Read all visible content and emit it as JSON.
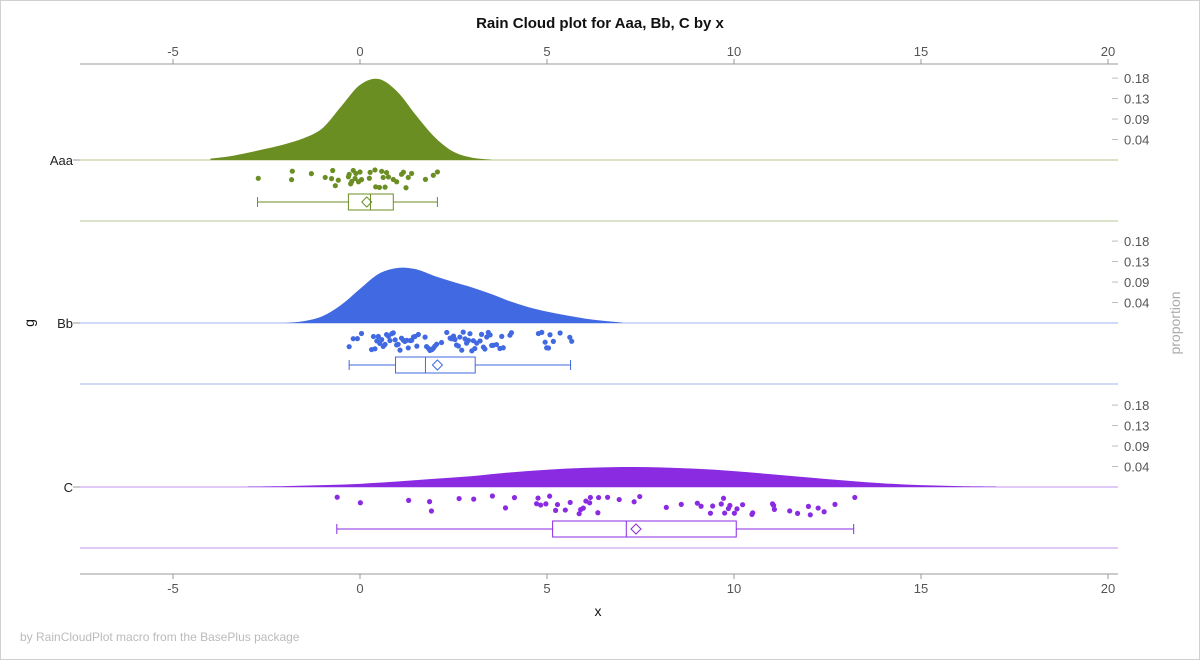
{
  "chart_data": {
    "type": "raincloud",
    "title": "Rain Cloud plot for Aaa, Bb, C by x",
    "xlabel": "x",
    "ylabel": "g",
    "y2label": "proportion",
    "xlim": [
      -7.5,
      20.3
    ],
    "xticks": [
      -5,
      0,
      5,
      10,
      15,
      20
    ],
    "density_ticks": [
      "0.04",
      "0.09",
      "0.13",
      "0.18"
    ],
    "density_tick_values": [
      0.045,
      0.09,
      0.135,
      0.18
    ],
    "footnote": "by RainCloudPlot macro from the BasePlus package",
    "grid": false,
    "groups": [
      {
        "name": "Aaa",
        "color": "#6B8E23",
        "density": {
          "x": [
            -4,
            -3.5,
            -3,
            -2.5,
            -2,
            -1.5,
            -1,
            -0.5,
            0,
            0.5,
            1,
            1.5,
            2,
            2.5,
            3,
            3.5
          ],
          "y": [
            0.003,
            0.008,
            0.016,
            0.025,
            0.035,
            0.048,
            0.07,
            0.118,
            0.165,
            0.178,
            0.15,
            0.098,
            0.05,
            0.018,
            0.005,
            0.001
          ]
        },
        "points": [
          -2.72,
          -1.83,
          -1.81,
          -1.3,
          -0.93,
          -0.76,
          -0.73,
          -0.66,
          -0.58,
          -0.31,
          -0.29,
          -0.25,
          -0.22,
          -0.18,
          -0.13,
          -0.11,
          -0.04,
          0.0,
          0.04,
          0.25,
          0.27,
          0.4,
          0.42,
          0.52,
          0.58,
          0.62,
          0.67,
          0.71,
          0.76,
          0.89,
          0.98,
          1.11,
          1.16,
          1.23,
          1.29,
          1.38,
          1.75,
          1.96,
          2.07
        ],
        "box": {
          "whisker_low": -2.74,
          "q1": -0.31,
          "median": 0.28,
          "mean": 0.18,
          "q3": 0.89,
          "whisker_high": 2.07
        }
      },
      {
        "name": "Bb",
        "color": "#4169E1",
        "density": {
          "x": [
            -2,
            -1.5,
            -1,
            -0.5,
            0,
            0.5,
            1,
            1.5,
            2,
            2.5,
            3,
            3.5,
            4,
            4.5,
            5,
            5.5,
            6,
            6.5,
            7
          ],
          "y": [
            0,
            0.004,
            0.015,
            0.04,
            0.075,
            0.108,
            0.121,
            0.118,
            0.103,
            0.09,
            0.078,
            0.064,
            0.048,
            0.035,
            0.025,
            0.017,
            0.01,
            0.005,
            0.001
          ]
        },
        "points": [
          -0.29,
          -0.18,
          -0.07,
          0.04,
          0.31,
          0.36,
          0.4,
          0.45,
          0.49,
          0.53,
          0.58,
          0.62,
          0.67,
          0.71,
          0.76,
          0.8,
          0.85,
          0.89,
          0.94,
          0.98,
          1.02,
          1.07,
          1.11,
          1.16,
          1.2,
          1.25,
          1.29,
          1.34,
          1.38,
          1.43,
          1.47,
          1.52,
          1.56,
          1.74,
          1.78,
          1.83,
          1.87,
          1.92,
          1.96,
          2.0,
          2.05,
          2.18,
          2.32,
          2.41,
          2.45,
          2.5,
          2.54,
          2.58,
          2.63,
          2.67,
          2.72,
          2.76,
          2.81,
          2.85,
          2.9,
          2.94,
          2.99,
          3.03,
          3.07,
          3.12,
          3.21,
          3.25,
          3.3,
          3.34,
          3.39,
          3.43,
          3.48,
          3.52,
          3.56,
          3.65,
          3.74,
          3.79,
          3.83,
          4.01,
          4.05,
          4.77,
          4.86,
          4.95,
          4.99,
          5.04,
          5.08,
          5.17,
          5.35,
          5.61,
          5.66
        ],
        "box": {
          "whisker_low": -0.29,
          "q1": 0.95,
          "median": 1.75,
          "mean": 2.07,
          "q3": 3.08,
          "whisker_high": 5.63
        }
      },
      {
        "name": "C",
        "color": "#8A2BE2",
        "density": {
          "x": [
            -3,
            -2,
            -1,
            0,
            1,
            2,
            3,
            4,
            5,
            6,
            7,
            8,
            9,
            10,
            11,
            12,
            13,
            14,
            15,
            16,
            17
          ],
          "y": [
            0.001,
            0.002,
            0.004,
            0.007,
            0.012,
            0.018,
            0.024,
            0.032,
            0.038,
            0.042,
            0.044,
            0.043,
            0.04,
            0.035,
            0.028,
            0.021,
            0.014,
            0.008,
            0.004,
            0.002,
            0.001
          ]
        },
        "points": [
          -0.61,
          0.01,
          1.3,
          1.86,
          1.91,
          2.65,
          3.04,
          3.54,
          3.89,
          4.13,
          4.72,
          4.76,
          4.83,
          4.97,
          5.07,
          5.23,
          5.28,
          5.49,
          5.62,
          5.86,
          5.9,
          5.97,
          6.04,
          6.14,
          6.16,
          6.36,
          6.38,
          6.62,
          6.93,
          7.33,
          7.48,
          8.19,
          8.59,
          9.02,
          9.12,
          9.37,
          9.43,
          9.66,
          9.72,
          9.75,
          9.85,
          9.89,
          10.01,
          10.08,
          10.23,
          10.48,
          10.5,
          11.03,
          11.06,
          11.08,
          11.49,
          11.7,
          11.99,
          12.04,
          12.25,
          12.41,
          12.7,
          13.23
        ],
        "box": {
          "whisker_low": -0.62,
          "q1": 5.15,
          "median": 7.12,
          "mean": 7.38,
          "q3": 10.06,
          "whisker_high": 13.2
        }
      }
    ]
  }
}
